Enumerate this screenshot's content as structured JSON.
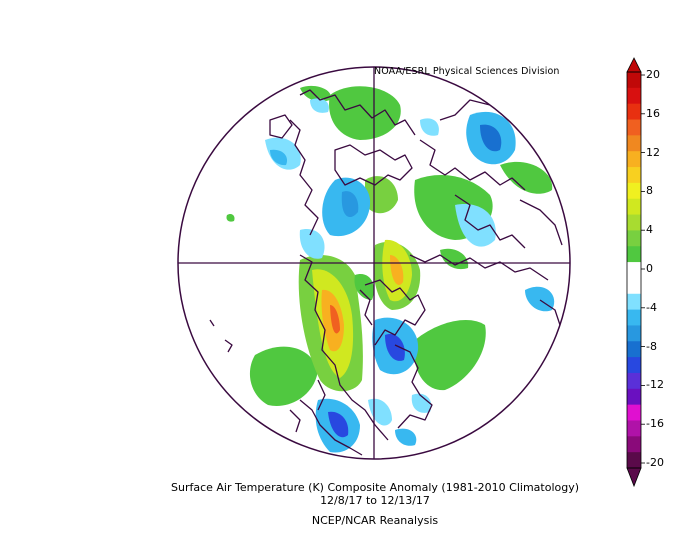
{
  "credit": "NOAA/ESRL Physical Sciences Division",
  "caption": {
    "line1": "Surface Air Temperature (K) Composite Anomaly (1981-2010 Climatology)",
    "line2": "12/8/17  to 12/13/17",
    "line3": "NCEP/NCAR Reanalysis"
  },
  "colorbar": {
    "ticks": [
      "20",
      "16",
      "12",
      "8",
      "4",
      "0",
      "-4",
      "-8",
      "-12",
      "-16",
      "-20"
    ],
    "colors": [
      "#5a0a4a",
      "#8a0a7a",
      "#b012a8",
      "#e010d0",
      "#6a10c0",
      "#5a30d8",
      "#2848e0",
      "#1870d0",
      "#2898e0",
      "#38b8f0",
      "#80e0ff",
      "#ffffff",
      "#ffffff",
      "#50c840",
      "#78d040",
      "#a8dc30",
      "#d0e820",
      "#f0f020",
      "#f8d020",
      "#f8b020",
      "#f08820",
      "#f06020",
      "#e83010",
      "#d81010",
      "#c00808"
    ]
  }
}
